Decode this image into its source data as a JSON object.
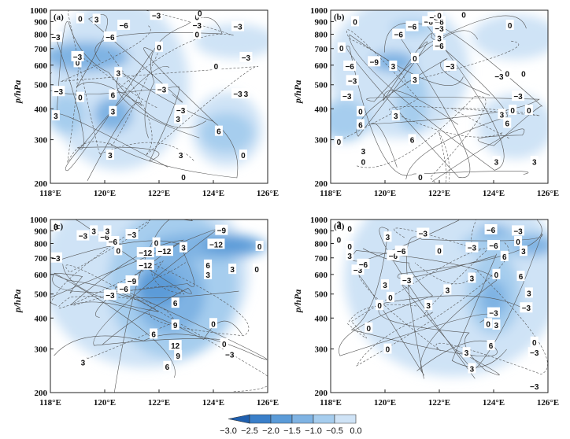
{
  "chart_data": {
    "type": "heatmap",
    "xlabel": "",
    "ylabel": "p/hPa",
    "x_ticks": [
      "118°E",
      "120°E",
      "122°E",
      "124°E",
      "126°E"
    ],
    "x_values": [
      118,
      120,
      122,
      124,
      126
    ],
    "y_ticks": [
      "200",
      "300",
      "400",
      "500",
      "600",
      "700",
      "800",
      "900",
      "1000"
    ],
    "y_values": [
      200,
      300,
      400,
      500,
      600,
      700,
      800,
      900,
      1000
    ],
    "xlim": [
      118,
      126
    ],
    "ylim": [
      1000,
      200
    ],
    "colorbar": {
      "labels": [
        "−3.0",
        "−2.5",
        "−2.0",
        "−1.5",
        "−1.0",
        "−0.5",
        "0.0"
      ],
      "values": [
        -3.0,
        -2.5,
        -2.0,
        -1.5,
        -1.0,
        -0.5,
        0.0
      ],
      "colors": [
        "#1f5fae",
        "#3a7fc9",
        "#5b9bd8",
        "#7fb3e3",
        "#a6cdee",
        "#cfe3f6"
      ]
    },
    "panels": [
      {
        "label": "(a)",
        "shading": [
          {
            "lon": 119.3,
            "p": 650,
            "rx": 1.6,
            "rp": 90,
            "level": 2
          },
          {
            "lon": 120.3,
            "p": 380,
            "rx": 0.7,
            "rp": 60,
            "level": 2
          },
          {
            "lon": 118.6,
            "p": 380,
            "rx": 0.7,
            "rp": 70,
            "level": 1
          },
          {
            "lon": 124.5,
            "p": 320,
            "rx": 1.0,
            "rp": 60,
            "level": 1
          },
          {
            "lon": 120.5,
            "p": 500,
            "rx": 2.6,
            "rp": 330,
            "level": 0
          },
          {
            "lon": 124.8,
            "p": 750,
            "rx": 1.5,
            "rp": 120,
            "level": 0
          },
          {
            "lon": 124.5,
            "p": 330,
            "rx": 1.3,
            "rp": 110,
            "level": 0
          }
        ],
        "labels": [
          {
            "lon": 120.2,
            "p": 260,
            "t": "3"
          },
          {
            "lon": 122.9,
            "p": 212,
            "t": "0"
          },
          {
            "lon": 122.8,
            "p": 260,
            "t": "3"
          },
          {
            "lon": 125.1,
            "p": 260,
            "t": "0"
          },
          {
            "lon": 124.2,
            "p": 325,
            "t": "6"
          },
          {
            "lon": 122.7,
            "p": 365,
            "t": "3"
          },
          {
            "lon": 118.2,
            "p": 375,
            "t": "3"
          },
          {
            "lon": 120.3,
            "p": 390,
            "t": "3"
          },
          {
            "lon": 122.8,
            "p": 395,
            "t": "−3"
          },
          {
            "lon": 119.1,
            "p": 445,
            "t": "0"
          },
          {
            "lon": 118.3,
            "p": 470,
            "t": "−3"
          },
          {
            "lon": 120.3,
            "p": 455,
            "t": "6"
          },
          {
            "lon": 122.1,
            "p": 480,
            "t": "−3"
          },
          {
            "lon": 125.2,
            "p": 460,
            "t": "3"
          },
          {
            "lon": 124.9,
            "p": 460,
            "t": "−3"
          },
          {
            "lon": 120.5,
            "p": 560,
            "t": "3"
          },
          {
            "lon": 119.0,
            "p": 615,
            "t": "0"
          },
          {
            "lon": 119.0,
            "p": 650,
            "t": "−3"
          },
          {
            "lon": 124.1,
            "p": 595,
            "t": "0"
          },
          {
            "lon": 125.2,
            "p": 645,
            "t": "−3"
          },
          {
            "lon": 122.0,
            "p": 710,
            "t": "0"
          },
          {
            "lon": 118.2,
            "p": 780,
            "t": "−3"
          },
          {
            "lon": 120.2,
            "p": 780,
            "t": "−6"
          },
          {
            "lon": 123.4,
            "p": 800,
            "t": "0"
          },
          {
            "lon": 120.7,
            "p": 870,
            "t": "−6"
          },
          {
            "lon": 123.4,
            "p": 870,
            "t": "−3"
          },
          {
            "lon": 124.9,
            "p": 860,
            "t": "−3"
          },
          {
            "lon": 119.1,
            "p": 925,
            "t": "0"
          },
          {
            "lon": 119.7,
            "p": 920,
            "t": "3"
          },
          {
            "lon": 121.9,
            "p": 955,
            "t": "−3"
          },
          {
            "lon": 123.4,
            "p": 940,
            "t": "0"
          },
          {
            "lon": 123.5,
            "p": 975,
            "t": "0"
          }
        ]
      },
      {
        "label": "(b)",
        "shading": [
          {
            "lon": 120.3,
            "p": 620,
            "rx": 0.8,
            "rp": 60,
            "level": 2
          },
          {
            "lon": 121.0,
            "p": 430,
            "rx": 0.6,
            "rp": 120,
            "level": 1
          },
          {
            "lon": 118.5,
            "p": 360,
            "rx": 0.9,
            "rp": 70,
            "level": 1
          },
          {
            "lon": 121.0,
            "p": 850,
            "rx": 0.8,
            "rp": 60,
            "level": 1
          },
          {
            "lon": 120.5,
            "p": 580,
            "rx": 2.6,
            "rp": 330,
            "level": 0
          },
          {
            "lon": 124.8,
            "p": 780,
            "rx": 1.6,
            "rp": 160,
            "level": 0
          },
          {
            "lon": 124.8,
            "p": 340,
            "rx": 1.4,
            "rp": 100,
            "level": 0
          }
        ],
        "labels": [
          {
            "lon": 121.3,
            "p": 212,
            "t": "0"
          },
          {
            "lon": 119.2,
            "p": 245,
            "t": "0"
          },
          {
            "lon": 119.2,
            "p": 270,
            "t": "3"
          },
          {
            "lon": 124.1,
            "p": 245,
            "t": "3"
          },
          {
            "lon": 125.5,
            "p": 245,
            "t": "3"
          },
          {
            "lon": 118.3,
            "p": 295,
            "t": "0"
          },
          {
            "lon": 121.0,
            "p": 300,
            "t": "6"
          },
          {
            "lon": 119.1,
            "p": 345,
            "t": "6"
          },
          {
            "lon": 124.5,
            "p": 350,
            "t": "6"
          },
          {
            "lon": 120.4,
            "p": 375,
            "t": "3"
          },
          {
            "lon": 124.3,
            "p": 380,
            "t": "3"
          },
          {
            "lon": 124.7,
            "p": 395,
            "t": "0"
          },
          {
            "lon": 125.3,
            "p": 395,
            "t": "0"
          },
          {
            "lon": 119.1,
            "p": 390,
            "t": "0"
          },
          {
            "lon": 118.6,
            "p": 450,
            "t": "−3"
          },
          {
            "lon": 124.9,
            "p": 450,
            "t": "−3"
          },
          {
            "lon": 118.8,
            "p": 520,
            "t": "−3"
          },
          {
            "lon": 121.1,
            "p": 525,
            "t": "3"
          },
          {
            "lon": 124.2,
            "p": 540,
            "t": "−3"
          },
          {
            "lon": 124.5,
            "p": 555,
            "t": "0"
          },
          {
            "lon": 125.1,
            "p": 555,
            "t": "0"
          },
          {
            "lon": 118.7,
            "p": 595,
            "t": "−6"
          },
          {
            "lon": 119.6,
            "p": 620,
            "t": "−9"
          },
          {
            "lon": 120.3,
            "p": 595,
            "t": "3"
          },
          {
            "lon": 122.4,
            "p": 595,
            "t": "−3"
          },
          {
            "lon": 121.1,
            "p": 640,
            "t": "0"
          },
          {
            "lon": 122.0,
            "p": 720,
            "t": "−6"
          },
          {
            "lon": 118.4,
            "p": 705,
            "t": "0"
          },
          {
            "lon": 122.0,
            "p": 770,
            "t": "3"
          },
          {
            "lon": 120.5,
            "p": 800,
            "t": "−6"
          },
          {
            "lon": 122.0,
            "p": 845,
            "t": "−3"
          },
          {
            "lon": 121.0,
            "p": 860,
            "t": "−6"
          },
          {
            "lon": 121.6,
            "p": 900,
            "t": "−6"
          },
          {
            "lon": 122.0,
            "p": 900,
            "t": "−6"
          },
          {
            "lon": 121.8,
            "p": 935,
            "t": "−3"
          },
          {
            "lon": 122.0,
            "p": 955,
            "t": "0"
          },
          {
            "lon": 118.9,
            "p": 900,
            "t": "0"
          },
          {
            "lon": 122.9,
            "p": 960,
            "t": "0"
          },
          {
            "lon": 124.6,
            "p": 870,
            "t": "0"
          }
        ]
      },
      {
        "label": "(c)",
        "shading": [
          {
            "lon": 122.0,
            "p": 530,
            "rx": 0.8,
            "rp": 90,
            "level": 3
          },
          {
            "lon": 124.6,
            "p": 790,
            "rx": 1.0,
            "rp": 60,
            "level": 3
          },
          {
            "lon": 122.4,
            "p": 500,
            "rx": 1.3,
            "rp": 180,
            "level": 2
          },
          {
            "lon": 123.8,
            "p": 780,
            "rx": 2.2,
            "rp": 100,
            "level": 2
          },
          {
            "lon": 122.5,
            "p": 550,
            "rx": 2.4,
            "rp": 330,
            "level": 1
          },
          {
            "lon": 121.5,
            "p": 600,
            "rx": 3.8,
            "rp": 420,
            "level": 0
          }
        ],
        "labels": [
          {
            "lon": 119.2,
            "p": 265,
            "t": "3"
          },
          {
            "lon": 122.3,
            "p": 255,
            "t": "6"
          },
          {
            "lon": 122.7,
            "p": 282,
            "t": "9"
          },
          {
            "lon": 124.6,
            "p": 285,
            "t": "−3"
          },
          {
            "lon": 122.6,
            "p": 310,
            "t": "12"
          },
          {
            "lon": 124.4,
            "p": 315,
            "t": "0"
          },
          {
            "lon": 121.8,
            "p": 345,
            "t": "6"
          },
          {
            "lon": 122.6,
            "p": 375,
            "t": "9"
          },
          {
            "lon": 124.0,
            "p": 380,
            "t": "0"
          },
          {
            "lon": 122.6,
            "p": 460,
            "t": "6"
          },
          {
            "lon": 120.2,
            "p": 495,
            "t": "−3"
          },
          {
            "lon": 120.7,
            "p": 525,
            "t": "−6"
          },
          {
            "lon": 121.0,
            "p": 565,
            "t": "−9"
          },
          {
            "lon": 123.8,
            "p": 600,
            "t": "3"
          },
          {
            "lon": 121.5,
            "p": 655,
            "t": "−12"
          },
          {
            "lon": 123.8,
            "p": 655,
            "t": "6"
          },
          {
            "lon": 124.7,
            "p": 630,
            "t": "3"
          },
          {
            "lon": 125.6,
            "p": 630,
            "t": "0"
          },
          {
            "lon": 118.2,
            "p": 700,
            "t": "−3"
          },
          {
            "lon": 121.5,
            "p": 735,
            "t": "−12"
          },
          {
            "lon": 122.2,
            "p": 745,
            "t": "−12"
          },
          {
            "lon": 122.9,
            "p": 770,
            "t": "3"
          },
          {
            "lon": 120.5,
            "p": 750,
            "t": "0"
          },
          {
            "lon": 124.1,
            "p": 795,
            "t": "−12"
          },
          {
            "lon": 125.7,
            "p": 780,
            "t": "0"
          },
          {
            "lon": 120.3,
            "p": 815,
            "t": "−6"
          },
          {
            "lon": 121.9,
            "p": 805,
            "t": "0"
          },
          {
            "lon": 119.2,
            "p": 860,
            "t": "−3"
          },
          {
            "lon": 120.0,
            "p": 850,
            "t": "−6"
          },
          {
            "lon": 121.0,
            "p": 870,
            "t": "−3"
          },
          {
            "lon": 119.6,
            "p": 900,
            "t": "3"
          },
          {
            "lon": 120.1,
            "p": 900,
            "t": "3"
          },
          {
            "lon": 118.2,
            "p": 935,
            "t": "3"
          },
          {
            "lon": 124.3,
            "p": 905,
            "t": "−9"
          }
        ]
      },
      {
        "label": "(d)",
        "shading": [
          {
            "lon": 124.0,
            "p": 480,
            "rx": 0.5,
            "rp": 80,
            "level": 2
          },
          {
            "lon": 125.5,
            "p": 780,
            "rx": 0.7,
            "rp": 70,
            "level": 2
          },
          {
            "lon": 124.0,
            "p": 900,
            "rx": 0.6,
            "rp": 50,
            "level": 2
          },
          {
            "lon": 124.0,
            "p": 500,
            "rx": 1.0,
            "rp": 180,
            "level": 1
          },
          {
            "lon": 124.6,
            "p": 800,
            "rx": 1.8,
            "rp": 100,
            "level": 1
          },
          {
            "lon": 122.5,
            "p": 580,
            "rx": 4.0,
            "rp": 420,
            "level": 0
          }
        ],
        "labels": [
          {
            "lon": 125.5,
            "p": 212,
            "t": "−3"
          },
          {
            "lon": 123.2,
            "p": 250,
            "t": "3"
          },
          {
            "lon": 123.0,
            "p": 290,
            "t": "3"
          },
          {
            "lon": 125.5,
            "p": 290,
            "t": "−3"
          },
          {
            "lon": 120.1,
            "p": 300,
            "t": "0"
          },
          {
            "lon": 123.9,
            "p": 310,
            "t": "6"
          },
          {
            "lon": 125.5,
            "p": 320,
            "t": "0"
          },
          {
            "lon": 119.4,
            "p": 365,
            "t": "0"
          },
          {
            "lon": 124.1,
            "p": 375,
            "t": "3"
          },
          {
            "lon": 123.8,
            "p": 380,
            "t": "0"
          },
          {
            "lon": 124.0,
            "p": 420,
            "t": "−3"
          },
          {
            "lon": 125.2,
            "p": 440,
            "t": "−3"
          },
          {
            "lon": 119.8,
            "p": 450,
            "t": "0"
          },
          {
            "lon": 121.6,
            "p": 450,
            "t": "3"
          },
          {
            "lon": 120.2,
            "p": 485,
            "t": "0"
          },
          {
            "lon": 125.3,
            "p": 505,
            "t": "3"
          },
          {
            "lon": 122.3,
            "p": 520,
            "t": "3"
          },
          {
            "lon": 120.0,
            "p": 545,
            "t": "3"
          },
          {
            "lon": 120.8,
            "p": 570,
            "t": "−3"
          },
          {
            "lon": 123.2,
            "p": 580,
            "t": "3"
          },
          {
            "lon": 124.1,
            "p": 600,
            "t": "0"
          },
          {
            "lon": 125.0,
            "p": 590,
            "t": "6"
          },
          {
            "lon": 119.0,
            "p": 625,
            "t": "−3"
          },
          {
            "lon": 119.2,
            "p": 660,
            "t": "−6"
          },
          {
            "lon": 118.7,
            "p": 715,
            "t": "3"
          },
          {
            "lon": 120.3,
            "p": 715,
            "t": "−6"
          },
          {
            "lon": 124.4,
            "p": 710,
            "t": "6"
          },
          {
            "lon": 120.6,
            "p": 745,
            "t": "−6"
          },
          {
            "lon": 122.0,
            "p": 750,
            "t": "0"
          },
          {
            "lon": 123.2,
            "p": 770,
            "t": "−3"
          },
          {
            "lon": 124.0,
            "p": 785,
            "t": "−6"
          },
          {
            "lon": 125.1,
            "p": 745,
            "t": "3"
          },
          {
            "lon": 124.9,
            "p": 815,
            "t": "0"
          },
          {
            "lon": 118.7,
            "p": 780,
            "t": "0"
          },
          {
            "lon": 118.3,
            "p": 830,
            "t": "0"
          },
          {
            "lon": 120.1,
            "p": 850,
            "t": "3"
          },
          {
            "lon": 121.4,
            "p": 880,
            "t": "−3"
          },
          {
            "lon": 123.9,
            "p": 910,
            "t": "−6"
          },
          {
            "lon": 124.9,
            "p": 900,
            "t": "−3"
          },
          {
            "lon": 118.7,
            "p": 920,
            "t": "0"
          },
          {
            "lon": 118.3,
            "p": 960,
            "t": "3"
          }
        ]
      }
    ]
  }
}
